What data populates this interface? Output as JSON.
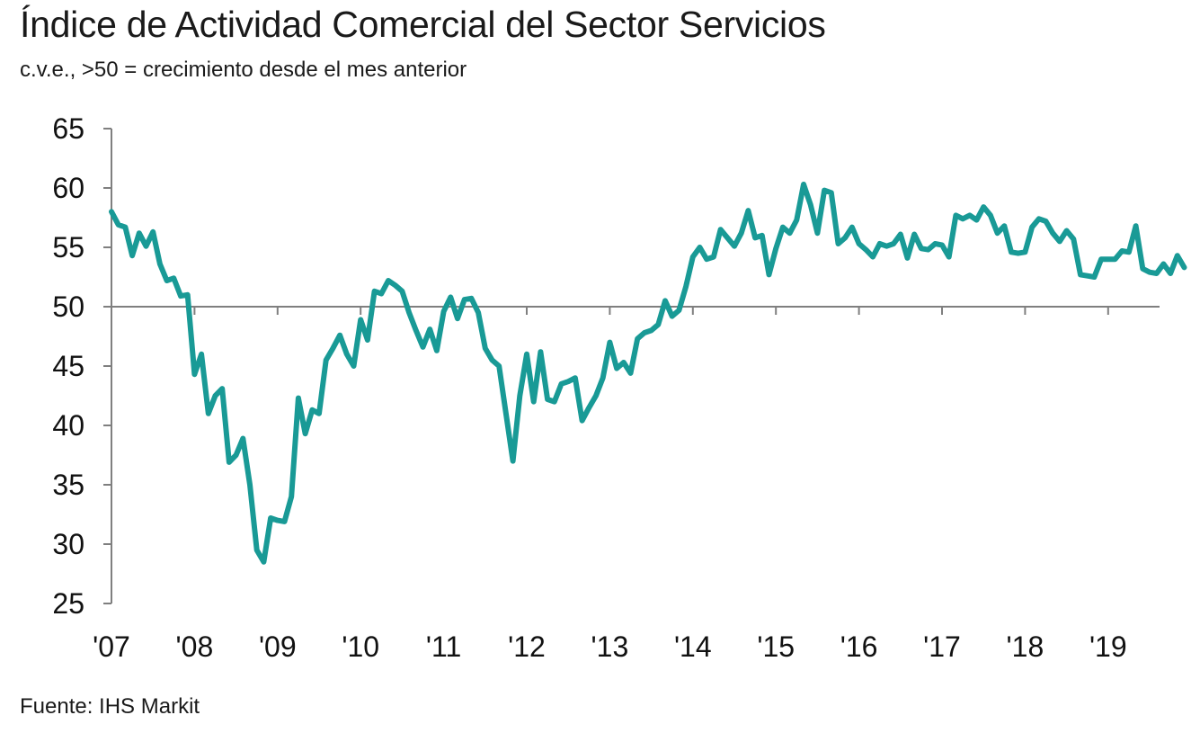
{
  "header": {
    "title": "Índice de Actividad Comercial del Sector Servicios",
    "subtitle": "c.v.e., >50 = crecimiento desde el mes anterior"
  },
  "footer": {
    "source": "Fuente: IHS Markit"
  },
  "colors": {
    "line": "#199a96",
    "axis": "#7f7f7f",
    "text": "#1a1a1a"
  },
  "chart_data": {
    "type": "line",
    "title": "Índice de Actividad Comercial del Sector Servicios",
    "subtitle": "c.v.e., >50 = crecimiento desde el mes anterior",
    "xlabel": "",
    "ylabel": "",
    "ylim": [
      25,
      65
    ],
    "yticks": [
      25,
      30,
      35,
      40,
      45,
      50,
      55,
      60,
      65
    ],
    "ytick_labels": [
      "25",
      "30",
      "35",
      "40",
      "45",
      "50",
      "55",
      "60",
      "65"
    ],
    "xtick_labels": [
      "'07",
      "'08",
      "'09",
      "'10",
      "'11",
      "'12",
      "'13",
      "'14",
      "'15",
      "'16",
      "'17",
      "'18",
      "'19"
    ],
    "reference_line": 50,
    "grid": false,
    "x_start": "2007-01",
    "x_frequency": "monthly",
    "series": [
      {
        "values": [
          58.0,
          56.9,
          56.7,
          54.3,
          56.2,
          55.1,
          56.3,
          53.6,
          52.2,
          52.4,
          50.9,
          51.0,
          44.3,
          46.0,
          41.0,
          42.5,
          43.1,
          36.9,
          37.5,
          38.9,
          35.0,
          29.5,
          28.5,
          32.2,
          32.0,
          31.9,
          34.0,
          42.3,
          39.3,
          41.3,
          41.0,
          45.5,
          46.5,
          47.6,
          46.0,
          45.0,
          48.9,
          47.2,
          51.3,
          51.1,
          52.2,
          51.8,
          51.3,
          49.5,
          48.0,
          46.6,
          48.1,
          46.3,
          49.6,
          50.8,
          49.0,
          50.6,
          50.7,
          49.5,
          46.5,
          45.5,
          45.0,
          41.0,
          37.0,
          42.5,
          46.0,
          42.0,
          46.2,
          42.2,
          42.0,
          43.5,
          43.7,
          44.0,
          40.4,
          41.5,
          42.5,
          44.0,
          47.0,
          44.8,
          45.3,
          44.4,
          47.3,
          47.8,
          48.0,
          48.5,
          50.5,
          49.2,
          49.7,
          51.7,
          54.2,
          55.0,
          54.0,
          54.2,
          56.5,
          55.8,
          55.1,
          56.2,
          58.1,
          55.8,
          56.0,
          52.7,
          54.9,
          56.7,
          56.2,
          57.3,
          60.3,
          58.6,
          56.2,
          59.8,
          59.6,
          55.3,
          55.8,
          56.7,
          55.3,
          54.8,
          54.2,
          55.3,
          55.1,
          55.3,
          56.1,
          54.1,
          56.1,
          54.9,
          54.8,
          55.3,
          55.2,
          54.2,
          57.7,
          57.4,
          57.7,
          57.3,
          58.4,
          57.7,
          56.2,
          56.8,
          54.6,
          54.5,
          54.6,
          56.7,
          57.4,
          57.2,
          56.2,
          55.5,
          56.4,
          55.7,
          52.7,
          52.6,
          52.5,
          54.0,
          54.0,
          54.0,
          54.7,
          54.6,
          56.8,
          53.2,
          52.9,
          52.8,
          53.6,
          52.8,
          54.3,
          53.3
        ]
      }
    ]
  }
}
